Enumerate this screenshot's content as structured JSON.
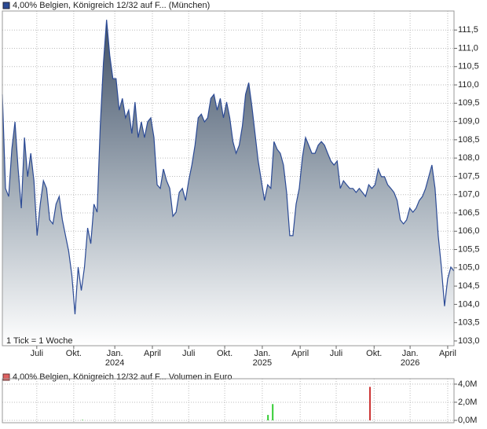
{
  "chart_data": [
    {
      "type": "area",
      "series": [
        {
          "name": "4,00% Belgien, Königreich 12/32 auf F... (München)",
          "color": "#2b4a95",
          "values": [
            109.74,
            107.17,
            106.95,
            108.24,
            108.99,
            107.7,
            106.63,
            108.56,
            107.49,
            108.13,
            107.38,
            105.88,
            106.74,
            107.38,
            107.17,
            106.31,
            106.2,
            106.74,
            106.95,
            106.31,
            105.88,
            105.45,
            104.8,
            103.73,
            105.02,
            104.38,
            105.02,
            106.09,
            105.66,
            106.74,
            106.52,
            108.88,
            110.6,
            111.78,
            110.81,
            110.17,
            110.17,
            109.31,
            109.63,
            109.1,
            109.31,
            108.67,
            109.53,
            108.56,
            108.99,
            108.56,
            108.99,
            109.1,
            108.56,
            107.27,
            107.17,
            107.7,
            107.38,
            107.17,
            106.41,
            106.52,
            107.06,
            107.17,
            106.84,
            107.38,
            107.81,
            108.35,
            109.1,
            109.2,
            108.99,
            109.1,
            109.63,
            109.74,
            109.31,
            109.63,
            109.1,
            109.53,
            109.1,
            108.45,
            108.13,
            108.35,
            108.88,
            109.74,
            110.06,
            109.42,
            108.67,
            107.92,
            107.38,
            106.84,
            107.27,
            107.17,
            108.45,
            108.24,
            108.13,
            107.81,
            107.06,
            105.88,
            105.88,
            106.74,
            107.17,
            108.02,
            108.56,
            108.35,
            108.13,
            108.13,
            108.35,
            108.45,
            108.35,
            108.13,
            107.92,
            107.81,
            107.92,
            107.17,
            107.38,
            107.27,
            107.17,
            107.17,
            107.06,
            107.17,
            107.06,
            106.95,
            107.27,
            107.17,
            107.27,
            107.7,
            107.49,
            107.49,
            107.27,
            107.17,
            107.06,
            106.84,
            106.31,
            106.2,
            106.31,
            106.63,
            106.52,
            106.63,
            106.84,
            106.95,
            107.17,
            107.49,
            107.81,
            107.17,
            105.88,
            105.02,
            103.95,
            104.7,
            105.02,
            104.91
          ]
        }
      ],
      "xlim": [
        0,
        143
      ],
      "xticks": [
        {
          "value": 10.9,
          "label": "Juli"
        },
        {
          "value": 22.6,
          "label": "Okt."
        },
        {
          "value": 35.6,
          "label": "Jan.",
          "year": "2024"
        },
        {
          "value": 47.5,
          "label": "April"
        },
        {
          "value": 59.0,
          "label": "Juli"
        },
        {
          "value": 70.4,
          "label": "Okt."
        },
        {
          "value": 82.3,
          "label": "Jan.",
          "year": "2025"
        },
        {
          "value": 94.3,
          "label": "April"
        },
        {
          "value": 105.7,
          "label": "Juli"
        },
        {
          "value": 117.7,
          "label": "Okt."
        },
        {
          "value": 129.1,
          "label": "Jan.",
          "year": "2026"
        },
        {
          "value": 141.0,
          "label": "April"
        }
      ],
      "ylim": [
        102.87,
        112.02
      ],
      "yticks": [
        {
          "value": 103.0,
          "label": "103,0"
        },
        {
          "value": 103.5,
          "label": "103,5"
        },
        {
          "value": 104.0,
          "label": "104,0"
        },
        {
          "value": 104.5,
          "label": "104,5"
        },
        {
          "value": 105.0,
          "label": "105,0"
        },
        {
          "value": 105.5,
          "label": "105,5"
        },
        {
          "value": 106.0,
          "label": "106,0"
        },
        {
          "value": 106.5,
          "label": "106,5"
        },
        {
          "value": 107.0,
          "label": "107,0"
        },
        {
          "value": 107.5,
          "label": "107,5"
        },
        {
          "value": 108.0,
          "label": "108,0"
        },
        {
          "value": 108.5,
          "label": "108,5"
        },
        {
          "value": 109.0,
          "label": "109,0"
        },
        {
          "value": 109.5,
          "label": "109,5"
        },
        {
          "value": 110.0,
          "label": "110,0"
        },
        {
          "value": 110.5,
          "label": "110,5"
        },
        {
          "value": 111.0,
          "label": "111,0"
        },
        {
          "value": 111.5,
          "label": "111,5"
        }
      ],
      "annotation": "1 Tick = 1 Woche",
      "grid": true
    },
    {
      "type": "bar",
      "title": "4,00% Belgien, Königreich 12/32 auf F... Volumen in Euro",
      "x": [
        25.4,
        84.1,
        85.6,
        116.4
      ],
      "values": [
        50000,
        600000,
        1800000,
        3700000
      ],
      "colors": [
        "#33bb33",
        "#33cc33",
        "#33cc33",
        "#cc3333"
      ],
      "xlim": [
        0,
        143
      ],
      "ylim": [
        -260000,
        4600000
      ],
      "yticks": [
        {
          "value": 0,
          "label": "0,0M"
        },
        {
          "value": 2000000,
          "label": "2,0M"
        },
        {
          "value": 4000000,
          "label": "4,0M"
        }
      ],
      "grid": true
    }
  ]
}
